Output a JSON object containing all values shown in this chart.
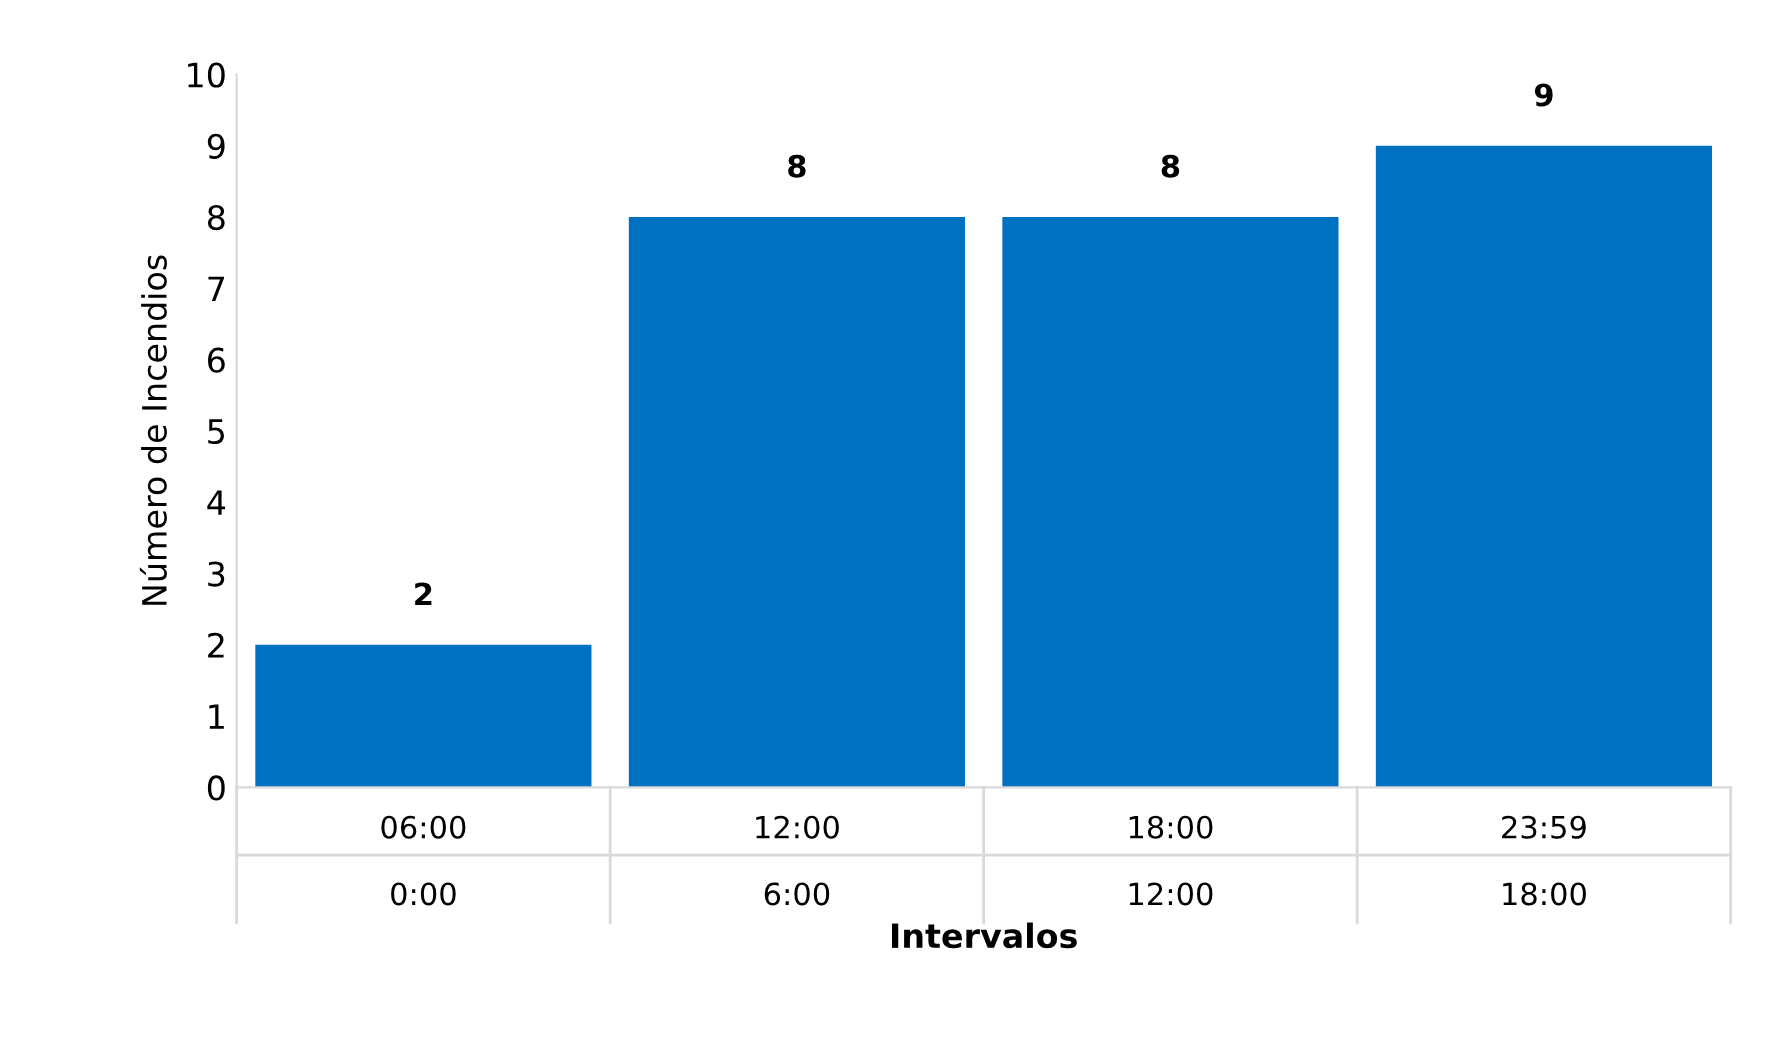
{
  "chart_data": {
    "type": "bar",
    "xlabel": "Intervalos",
    "ylabel": "Número de Incendios",
    "categories": [
      "06:00\n0:00",
      "12:00\n6:00",
      "18:00\n12:00",
      "23:59\n18:00"
    ],
    "values": [
      2,
      8,
      8,
      9
    ],
    "color": "#0070c0",
    "ylim": [
      0,
      10
    ],
    "yticks": [
      0,
      1,
      2,
      3,
      4,
      5,
      6,
      7,
      8,
      9,
      10
    ],
    "grid": false,
    "data_labels": true
  }
}
